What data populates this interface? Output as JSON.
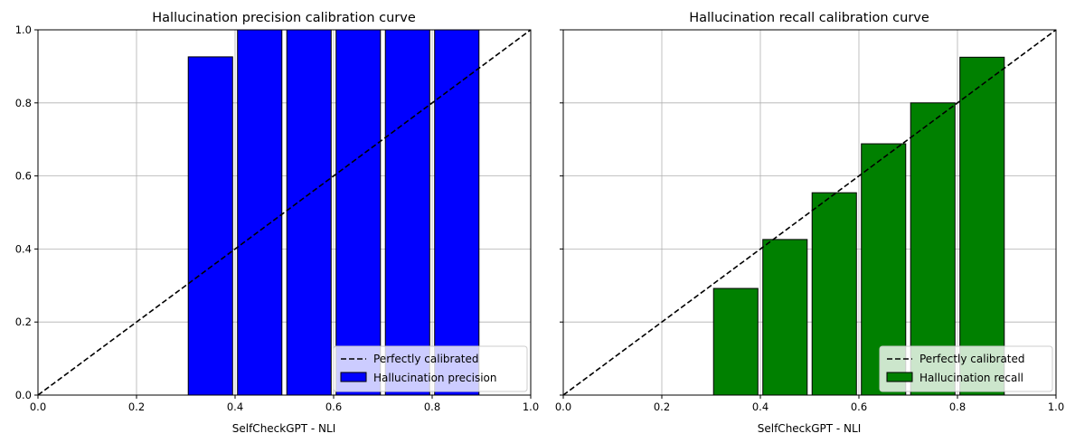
{
  "chart_data": [
    {
      "type": "bar",
      "title": "Hallucination precision calibration curve",
      "xlabel": "SelfCheckGPT - NLI",
      "ylabel": "",
      "xlim": [
        0,
        1
      ],
      "ylim": [
        0,
        1
      ],
      "grid": true,
      "bin_width": 0.1,
      "x": [
        0.05,
        0.15,
        0.25,
        0.35,
        0.45,
        0.55,
        0.65,
        0.75,
        0.85
      ],
      "values": [
        0.0,
        0.0,
        0.0,
        0.926,
        1.0,
        1.0,
        1.0,
        1.0,
        1.0
      ],
      "bar_color": "#0000ff",
      "edge_color": "#000000",
      "diagonal_color": "#000000",
      "x_ticks": [
        "0.0",
        "0.2",
        "0.4",
        "0.6",
        "0.8",
        "1.0"
      ],
      "y_ticks": [
        "0.0",
        "0.2",
        "0.4",
        "0.6",
        "0.8",
        "1.0"
      ],
      "show_y_tick_labels": true,
      "legend": {
        "position": "lower-right",
        "entries": [
          "Perfectly calibrated",
          "Hallucination precision"
        ]
      }
    },
    {
      "type": "bar",
      "title": "Hallucination recall calibration curve",
      "xlabel": "SelfCheckGPT - NLI",
      "ylabel": "",
      "xlim": [
        0,
        1
      ],
      "ylim": [
        0,
        1
      ],
      "grid": true,
      "bin_width": 0.1,
      "x": [
        0.05,
        0.15,
        0.25,
        0.35,
        0.45,
        0.55,
        0.65,
        0.75,
        0.85
      ],
      "values": [
        0.0,
        0.0,
        0.0,
        0.292,
        0.426,
        0.554,
        0.688,
        0.8,
        0.925
      ],
      "bar_color": "#008000",
      "edge_color": "#000000",
      "diagonal_color": "#000000",
      "x_ticks": [
        "0.0",
        "0.2",
        "0.4",
        "0.6",
        "0.8",
        "1.0"
      ],
      "y_ticks": [
        "0.0",
        "0.2",
        "0.4",
        "0.6",
        "0.8",
        "1.0"
      ],
      "show_y_tick_labels": false,
      "legend": {
        "position": "lower-right",
        "entries": [
          "Perfectly calibrated",
          "Hallucination recall"
        ]
      }
    }
  ]
}
